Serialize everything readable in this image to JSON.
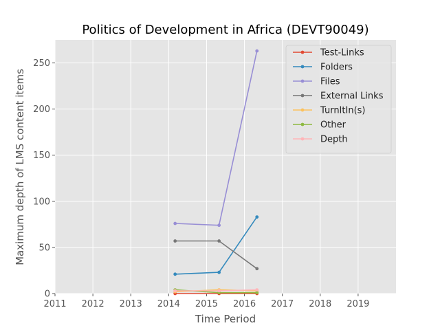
{
  "chart_data": {
    "type": "line",
    "title": "Politics of Development in Africa (DEVT90049)",
    "xlabel": "Time Period",
    "ylabel": "Maximum depth of LMS content items",
    "xlim": [
      2011,
      2020
    ],
    "ylim": [
      0,
      275
    ],
    "xticks": [
      2011,
      2012,
      2013,
      2014,
      2015,
      2016,
      2017,
      2018,
      2019
    ],
    "yticks": [
      0,
      50,
      100,
      150,
      200,
      250
    ],
    "grid": true,
    "legend_position": "top-right",
    "series": [
      {
        "name": "Test-Links",
        "color": "#E24A33",
        "x": [
          2014.17,
          2015.33,
          2016.33
        ],
        "y": [
          0,
          0,
          0
        ]
      },
      {
        "name": "Folders",
        "color": "#348ABD",
        "x": [
          2014.17,
          2015.33,
          2016.33
        ],
        "y": [
          21,
          23,
          83
        ]
      },
      {
        "name": "Files",
        "color": "#988ED5",
        "x": [
          2014.17,
          2015.33,
          2016.33
        ],
        "y": [
          76,
          74,
          263
        ]
      },
      {
        "name": "External Links",
        "color": "#777777",
        "x": [
          2014.17,
          2015.33,
          2016.33
        ],
        "y": [
          57,
          57,
          27
        ]
      },
      {
        "name": "TurnItIn(s)",
        "color": "#FBC15E",
        "x": [
          2014.17,
          2015.33,
          2016.33
        ],
        "y": [
          2,
          4,
          3
        ]
      },
      {
        "name": "Other",
        "color": "#8EBA42",
        "x": [
          2014.17,
          2015.33,
          2016.33
        ],
        "y": [
          4,
          1,
          1
        ]
      },
      {
        "name": "Depth",
        "color": "#FFB5B8",
        "x": [
          2014.17,
          2015.33,
          2016.33
        ],
        "y": [
          3,
          3,
          4
        ]
      }
    ]
  }
}
